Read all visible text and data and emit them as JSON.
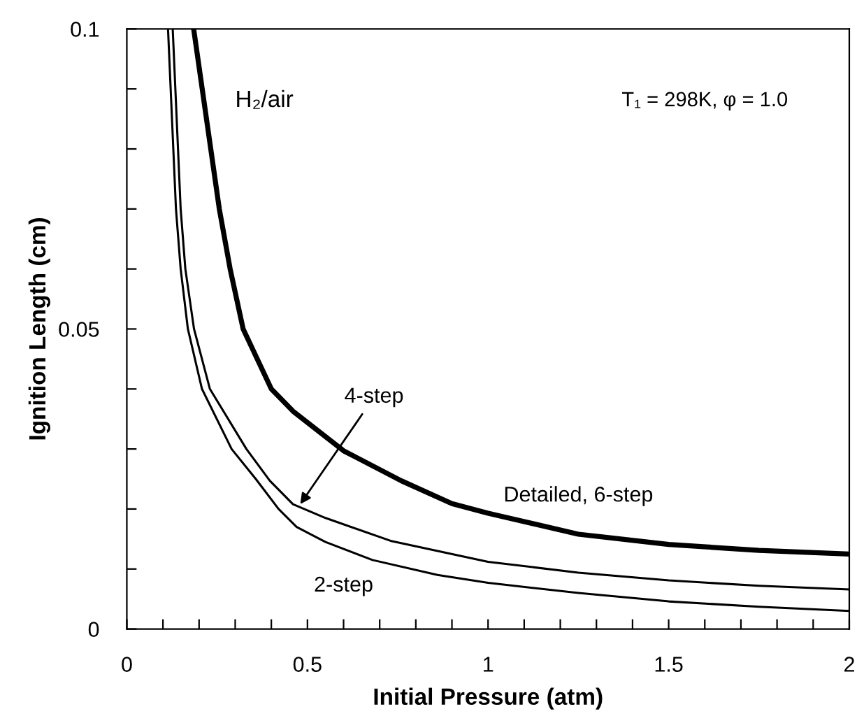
{
  "chart_data": {
    "type": "line",
    "xlabel": "Initial Pressure (atm)",
    "ylabel": "Ignition Length (cm)",
    "series": [
      {
        "name": "Detailed, 6-step",
        "color": "#000000",
        "x": [
          0.185,
          0.256,
          0.286,
          0.322,
          0.4,
          0.46,
          0.6,
          0.76,
          0.9,
          1,
          1.25,
          1.5,
          1.75,
          2
        ],
        "values": [
          0.1,
          0.07,
          0.06,
          0.05,
          0.04,
          0.0363,
          0.0297,
          0.0247,
          0.0209,
          0.0193,
          0.0158,
          0.0141,
          0.0131,
          0.0125
        ]
      },
      {
        "color": "#000000",
        "x": [
          0.127,
          0.149,
          0.162,
          0.186,
          0.23,
          0.331,
          0.396,
          0.46,
          0.55,
          0.73,
          1,
          1.25,
          1.5,
          1.75,
          2
        ],
        "values": [
          0.1,
          0.07,
          0.06,
          0.05,
          0.04,
          0.03,
          0.0247,
          0.0208,
          0.0185,
          0.0147,
          0.0112,
          0.0094,
          0.0081,
          0.0072,
          0.0066
        ]
      },
      {
        "name": "2-step",
        "color": "#000000",
        "x": [
          0.114,
          0.136,
          0.149,
          0.169,
          0.208,
          0.29,
          0.357,
          0.42,
          0.47,
          0.55,
          0.68,
          0.86,
          1,
          1.25,
          1.5,
          1.75,
          2
        ],
        "values": [
          0.1,
          0.07,
          0.06,
          0.05,
          0.04,
          0.03,
          0.025,
          0.02,
          0.017,
          0.0145,
          0.0115,
          0.009,
          0.0077,
          0.006,
          0.0046,
          0.0037,
          0.003
        ]
      }
    ],
    "annotations": [
      "H₂/air",
      "T₁ = 298K, φ = 1.0",
      {
        "text": "4-step",
        "x": 0.48,
        "y": 0.0208
      }
    ],
    "xlim": [
      0,
      2
    ],
    "ylim": [
      0,
      0.1
    ],
    "xticks": [
      0,
      {
        "value": 0.1,
        "label": null
      },
      {
        "value": 0.2,
        "label": null
      },
      {
        "value": 0.3,
        "label": null
      },
      {
        "value": 0.4,
        "label": null
      },
      0.5,
      {
        "value": 0.6,
        "label": null
      },
      {
        "value": 0.7,
        "label": null
      },
      {
        "value": 0.8,
        "label": null
      },
      {
        "value": 0.9,
        "label": null
      },
      1,
      {
        "value": 1.1,
        "label": null
      },
      {
        "value": 1.2,
        "label": null
      },
      {
        "value": 1.3,
        "label": null
      },
      {
        "value": 1.4,
        "label": null
      },
      1.5,
      {
        "value": 1.6,
        "label": null
      },
      {
        "value": 1.7,
        "label": null
      },
      {
        "value": 1.8,
        "label": null
      },
      {
        "value": 1.9,
        "label": null
      },
      2
    ],
    "yticks": [
      0,
      {
        "value": 0.01,
        "label": null
      },
      {
        "value": 0.02,
        "label": null
      },
      {
        "value": 0.03,
        "label": null
      },
      {
        "value": 0.04,
        "label": null
      },
      0.05,
      {
        "value": 0.06,
        "label": null
      },
      {
        "value": 0.07,
        "label": null
      },
      {
        "value": 0.08,
        "label": null
      },
      {
        "value": 0.09,
        "label": null
      },
      0.1
    ],
    "grid": false,
    "legend": false,
    "marker": "none",
    "line_style": "solid"
  }
}
